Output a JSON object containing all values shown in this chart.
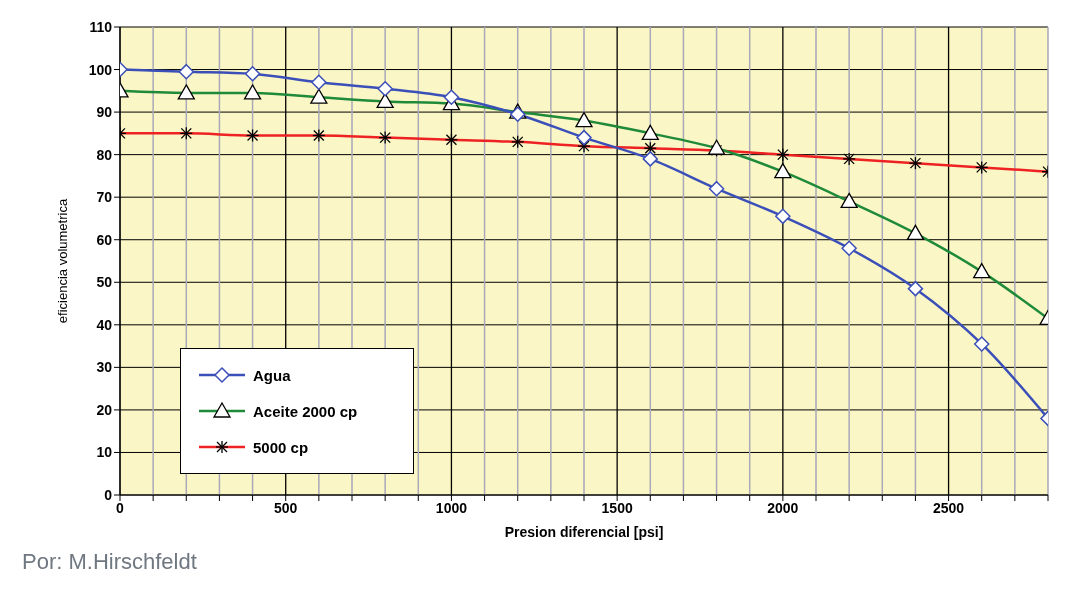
{
  "chart_data": {
    "type": "line",
    "xlabel": "Presion diferencial [psi]",
    "ylabel": "eficiencia volumetrica",
    "annotations": [
      "Por: M.Hirschfeldt"
    ],
    "x": [
      0,
      200,
      400,
      600,
      800,
      1000,
      1200,
      1400,
      1600,
      1800,
      2000,
      2200,
      2400,
      2600,
      2800
    ],
    "series": [
      {
        "name": "Agua",
        "color": "#3b4fb8",
        "marker": "diamond",
        "values": [
          100,
          99.5,
          99,
          97,
          95.5,
          93.5,
          89.5,
          84,
          79,
          72,
          65.5,
          58,
          48.5,
          35.5,
          18
        ]
      },
      {
        "name": "Aceite 2000 cp",
        "color": "#1e8a3a",
        "marker": "triangle",
        "values": [
          95,
          94.5,
          94.5,
          93.5,
          92.5,
          92,
          90,
          88,
          85,
          81.5,
          76,
          69,
          61.5,
          52.5,
          41.5
        ]
      },
      {
        "name": "5000 cp",
        "color": "#ee2222",
        "marker": "cross",
        "values": [
          85,
          85,
          84.5,
          84.5,
          84,
          83.5,
          83,
          82,
          81.5,
          81,
          80,
          79,
          78,
          77,
          76
        ]
      }
    ],
    "xlim": [
      0,
      2800
    ],
    "xticks": [
      0,
      {
        "value": 100,
        "label": null
      },
      {
        "value": 200,
        "label": null
      },
      {
        "value": 300,
        "label": null
      },
      {
        "value": 400,
        "label": null
      },
      500,
      {
        "value": 600,
        "label": null
      },
      {
        "value": 700,
        "label": null
      },
      {
        "value": 800,
        "label": null
      },
      {
        "value": 900,
        "label": null
      },
      1000,
      {
        "value": 1100,
        "label": null
      },
      {
        "value": 1200,
        "label": null
      },
      {
        "value": 1300,
        "label": null
      },
      {
        "value": 1400,
        "label": null
      },
      1500,
      {
        "value": 1600,
        "label": null
      },
      {
        "value": 1700,
        "label": null
      },
      {
        "value": 1800,
        "label": null
      },
      {
        "value": 1900,
        "label": null
      },
      2000,
      {
        "value": 2100,
        "label": null
      },
      {
        "value": 2200,
        "label": null
      },
      {
        "value": 2300,
        "label": null
      },
      {
        "value": 2400,
        "label": null
      },
      2500,
      {
        "value": 2600,
        "label": null
      },
      {
        "value": 2700,
        "label": null
      },
      {
        "value": 2800,
        "label": null
      }
    ],
    "ylim": [
      0,
      110
    ],
    "yticks": [
      0,
      10,
      20,
      30,
      40,
      50,
      60,
      70,
      80,
      90,
      100,
      110
    ],
    "grid": true,
    "legend": "bottom left",
    "line_style": "solid"
  }
}
